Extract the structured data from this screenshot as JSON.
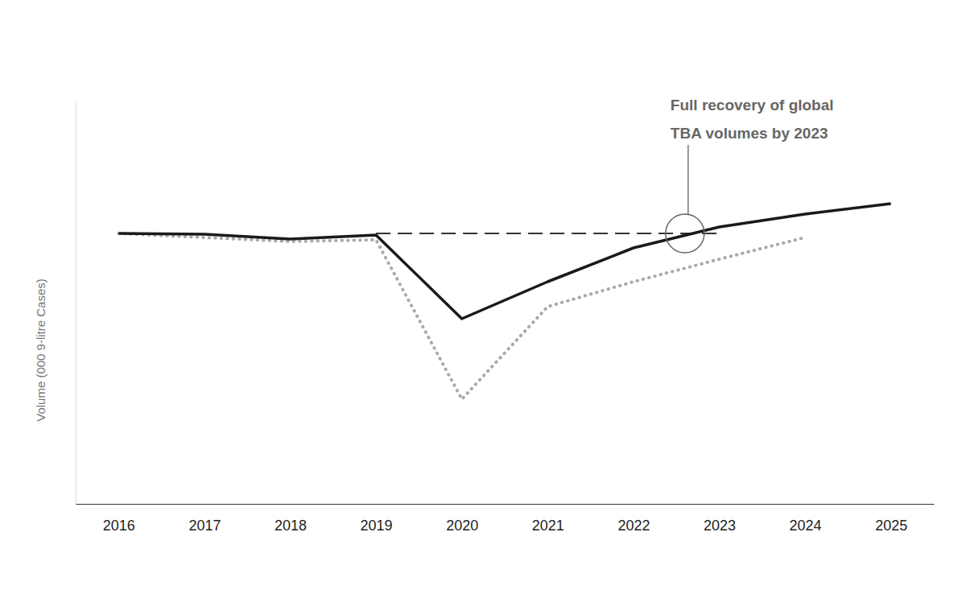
{
  "chart_data": {
    "type": "line",
    "y_label": "Volume (000 9-litre Cases)",
    "x": [
      2016,
      2017,
      2018,
      2019,
      2020,
      2021,
      2022,
      2023,
      2024,
      2025
    ],
    "xlim": [
      2015.5,
      2025.5
    ],
    "xticks": [
      2016,
      2017,
      2018,
      2019,
      2020,
      2021,
      2022,
      2023,
      2024,
      2025
    ],
    "ylim": [
      0,
      100
    ],
    "tick_labels": "x",
    "grid": false,
    "series": [
      {
        "color": "#1a1a1a",
        "line_style": "solid",
        "values": [
          67.2,
          67,
          65.8,
          66.8,
          46,
          55.2,
          63.6,
          68.8,
          72,
          74.6
        ]
      },
      {
        "color": "#aaaaaa",
        "line_style": "dotted",
        "values": [
          67.2,
          66.2,
          65.2,
          65.6,
          26,
          49,
          55.2,
          60.8,
          66.2,
          null
        ]
      },
      {
        "color": "#333333",
        "line_style": "dashed",
        "values": [
          null,
          null,
          null,
          67.2,
          67.2,
          67.2,
          67.2,
          67.2,
          null,
          null
        ]
      }
    ],
    "annotation": {
      "text": [
        "Full recovery of global",
        "TBA volumes by 2023"
      ],
      "x": 2022.6,
      "y": 67.2
    }
  }
}
